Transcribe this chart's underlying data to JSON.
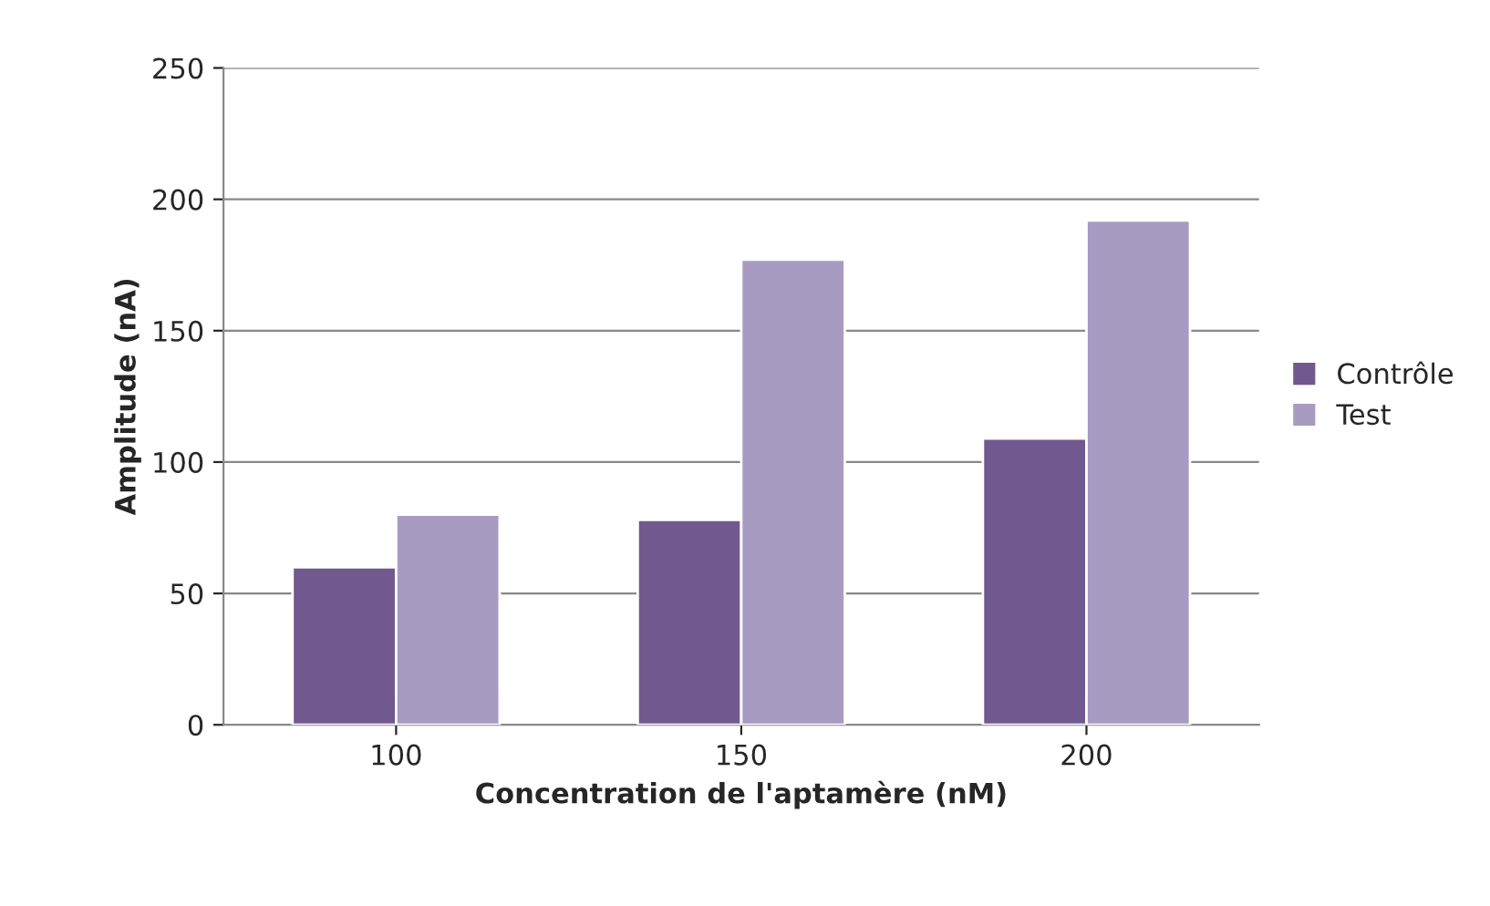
{
  "chart_data": {
    "type": "bar",
    "xlabel": "Concentration de l'aptamère (nM)",
    "ylabel": "Amplitude (nA)",
    "categories": [
      "100",
      "150",
      "200"
    ],
    "series": [
      {
        "name": "Contrôle",
        "color": "#71598f",
        "values": [
          60,
          78,
          109
        ]
      },
      {
        "name": "Test",
        "color": "#a79bc2",
        "values": [
          80,
          177,
          192
        ]
      }
    ],
    "ylim": [
      0,
      250
    ],
    "yticks": [
      0,
      50,
      100,
      150,
      200,
      250
    ],
    "grid": "y",
    "legend": "right"
  }
}
